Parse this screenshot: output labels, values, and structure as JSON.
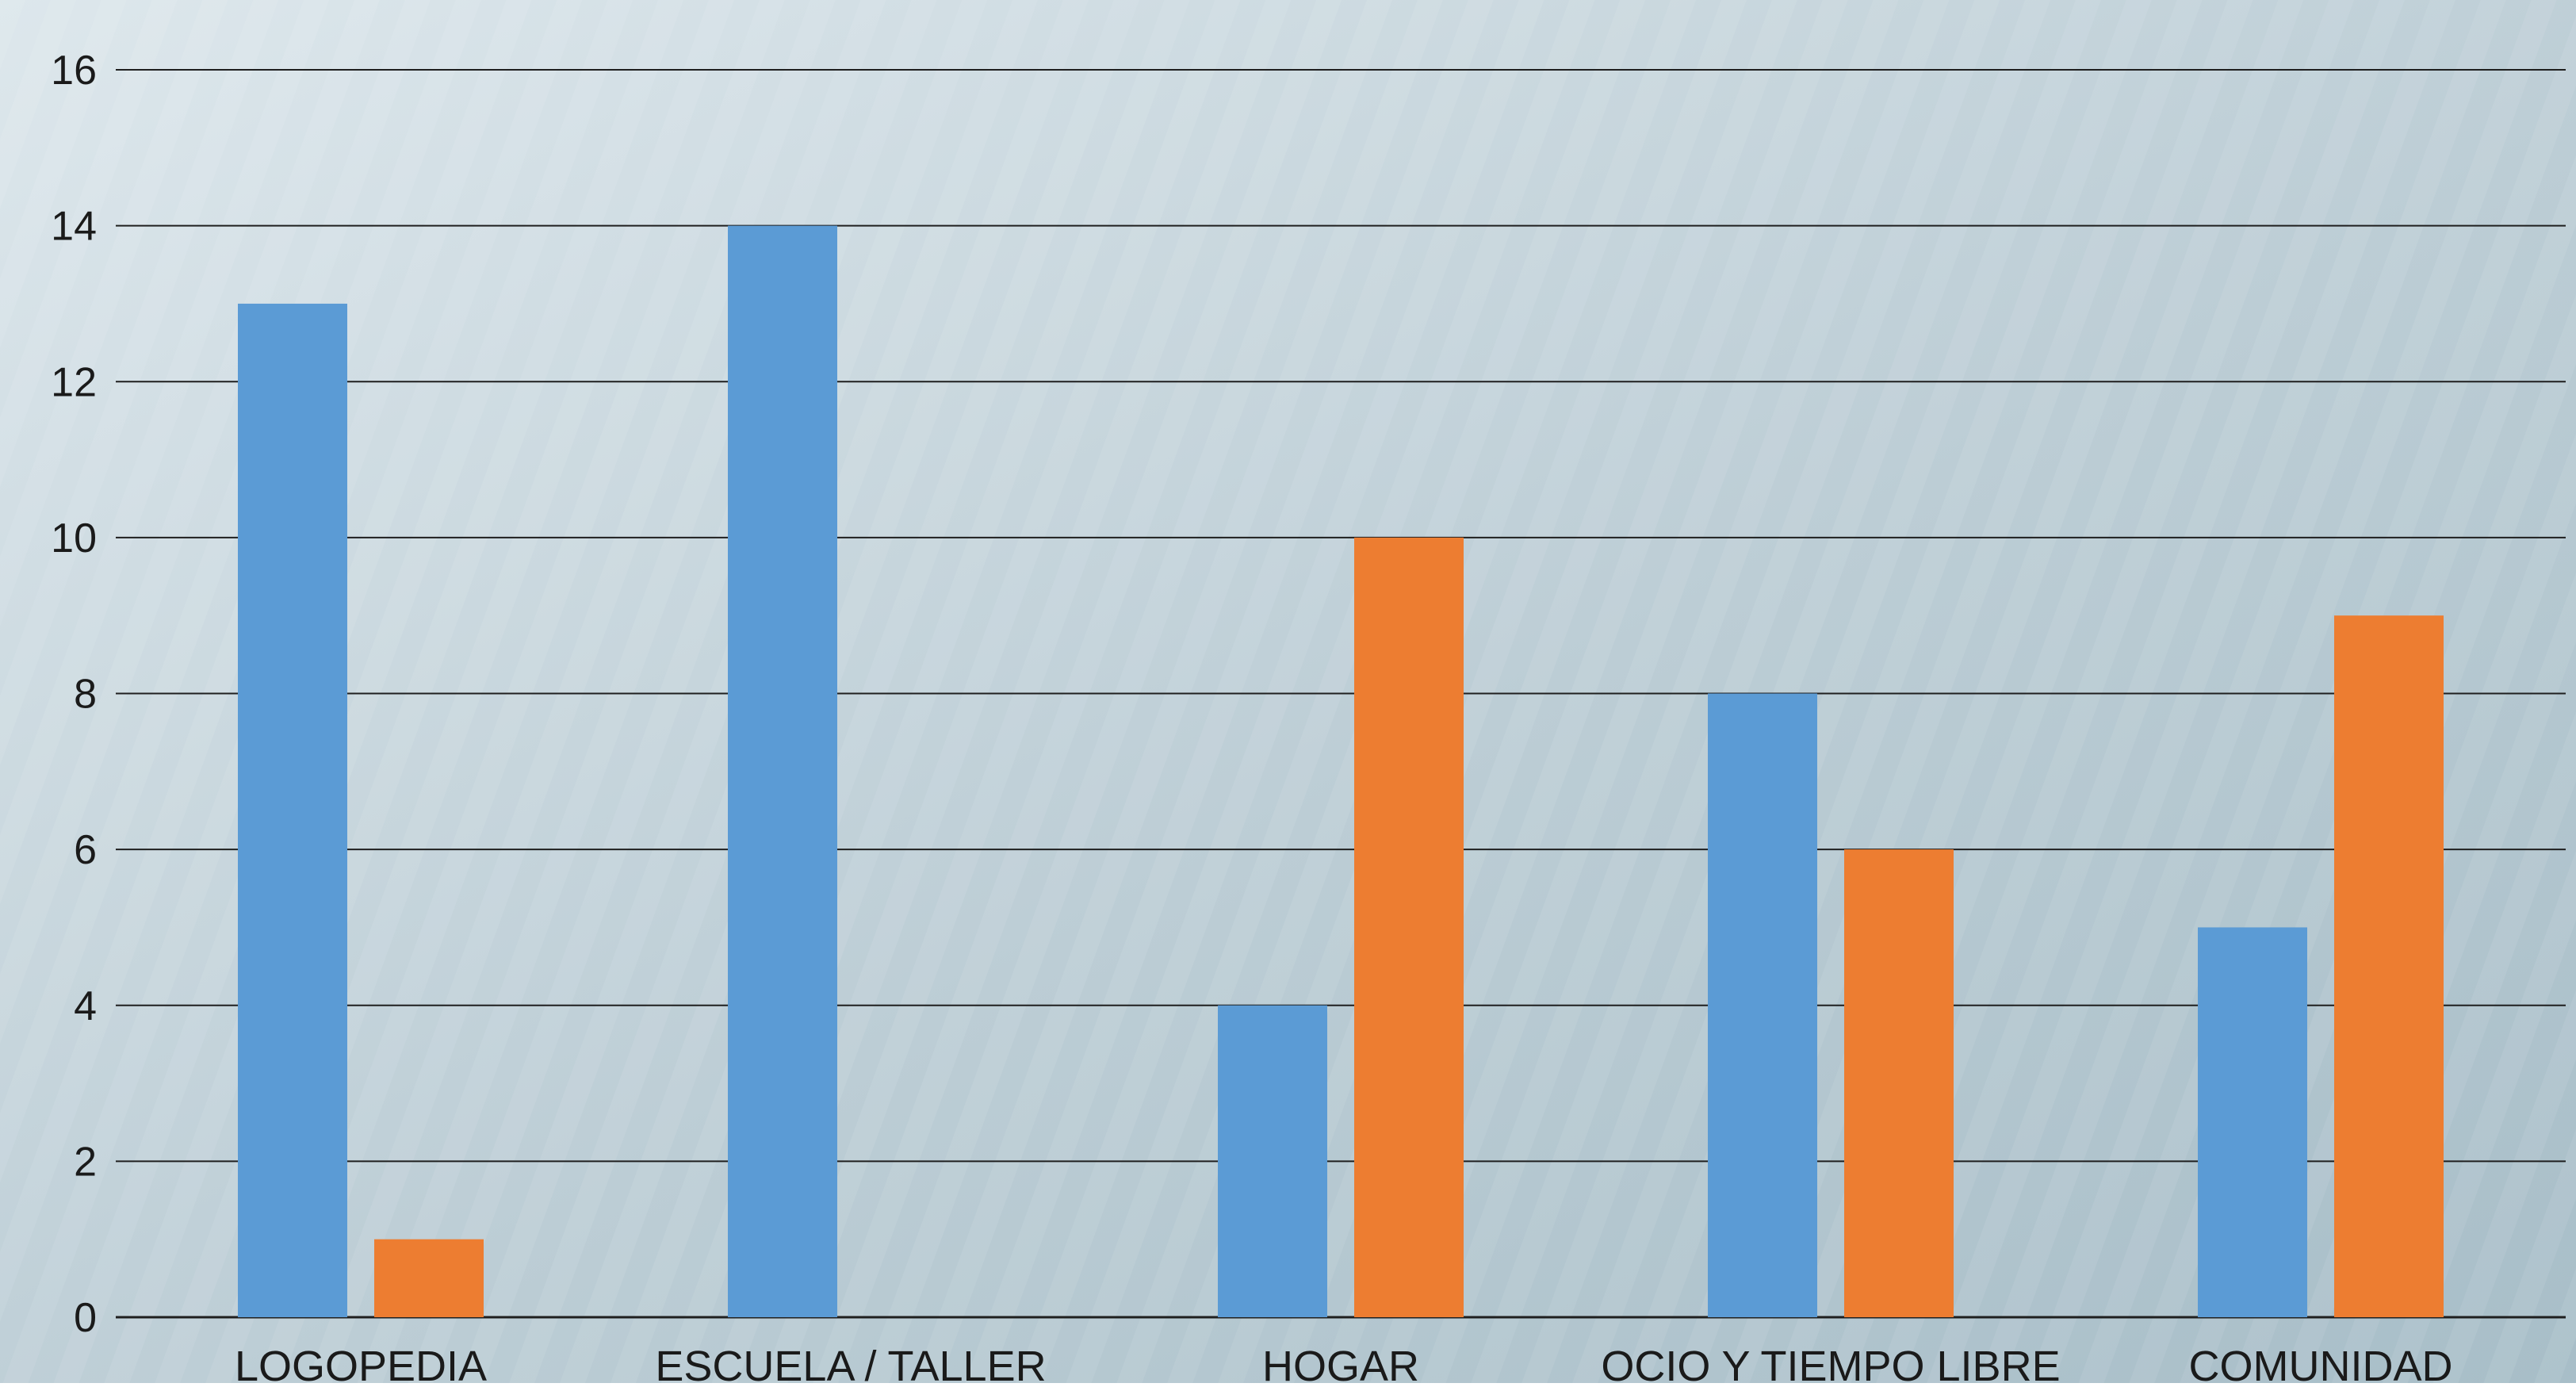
{
  "chart_data": {
    "type": "bar",
    "categories": [
      "LOGOPEDIA",
      "ESCUELA / TALLER",
      "HOGAR",
      "OCIO Y TIEMPO LIBRE",
      "COMUNIDAD"
    ],
    "series": [
      {
        "color": "#5b9bd5",
        "values": [
          13,
          14,
          4,
          8,
          5
        ]
      },
      {
        "color": "#ed7d31",
        "values": [
          1,
          0,
          10,
          6,
          9
        ]
      }
    ],
    "ylim": [
      0,
      16
    ],
    "yticks": [
      "0",
      "2",
      "4",
      "6",
      "8",
      "10",
      "12",
      "14",
      "16"
    ],
    "grid": true,
    "legend": "none"
  },
  "colors": {
    "background_light": "#dbe5ea",
    "background_dark": "#a9bfc9",
    "gridline": "#1f1f1f"
  }
}
